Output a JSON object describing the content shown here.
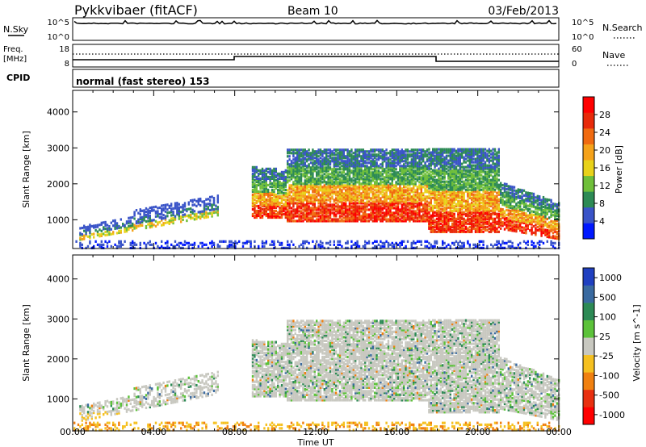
{
  "header": {
    "station": "Pykkvibaer (fitACF)",
    "beam": "Beam 10",
    "date": "03/Feb/2013"
  },
  "panels": {
    "nsky": {
      "label": "N.Sky",
      "tick_top": "10^5",
      "tick_bottom": "10^0",
      "right_tick_top": "10^5",
      "right_tick_bottom": "10^0",
      "right_label": "N.Search"
    },
    "freq": {
      "label_line1": "Freq.",
      "label_line2": "[MHz]",
      "tick_top": "18",
      "tick_bottom": "8",
      "right_tick_top": "60",
      "right_tick_bottom": "0",
      "right_label": "Nave"
    },
    "cpid": {
      "label": "CPID",
      "mode_text": "normal (fast stereo) 153"
    }
  },
  "colors": {
    "velocity_ground": "#c8c8c0",
    "axis": "#000000"
  },
  "chart_data": [
    {
      "type": "heatmap",
      "name": "power",
      "ylabel": "Slant Range [km]",
      "yticks": [
        "1000",
        "2000",
        "3000",
        "4000"
      ],
      "ylim": [
        200,
        4600
      ],
      "xlim": [
        0,
        24
      ],
      "xticks": [
        "00:00",
        "04:00",
        "08:00",
        "12:00",
        "16:00",
        "20:00",
        "00:00"
      ],
      "colorbar": {
        "label": "Power [dB]",
        "ticks": [
          "4",
          "8",
          "12",
          "16",
          "20",
          "24",
          "28"
        ],
        "range": [
          0,
          30
        ],
        "colors": [
          "#0018ff",
          "#3a54c8",
          "#2d8a55",
          "#6fbf3a",
          "#e8d21a",
          "#f5a21a",
          "#f06a10",
          "#e82a0a",
          "#ff0000"
        ]
      },
      "bands": [
        {
          "t0": 0.2,
          "t1": 7.0,
          "r0": 500,
          "r1": 1400,
          "level": "low"
        },
        {
          "t0": 9.0,
          "t1": 24.0,
          "r0": 900,
          "r1": 2800,
          "level": "high"
        }
      ]
    },
    {
      "type": "heatmap",
      "name": "velocity",
      "ylabel": "Slant Range [km]",
      "yticks": [
        "1000",
        "2000",
        "3000",
        "4000"
      ],
      "ylim": [
        200,
        4600
      ],
      "xlim": [
        0,
        24
      ],
      "xticks": [
        "00:00",
        "04:00",
        "08:00",
        "12:00",
        "16:00",
        "20:00",
        "00:00"
      ],
      "xlabel": "Time UT",
      "colorbar": {
        "label": "Velocity [m s^-1]",
        "ticks": [
          "1000",
          "500",
          "100",
          "25",
          "-25",
          "-100",
          "-500",
          "-1000"
        ],
        "colors": [
          "#2040c0",
          "#3a6aa0",
          "#2d8a55",
          "#5cc23a",
          "#c8c8c0",
          "#f5c020",
          "#f08010",
          "#e83010",
          "#ff0000"
        ]
      }
    }
  ]
}
